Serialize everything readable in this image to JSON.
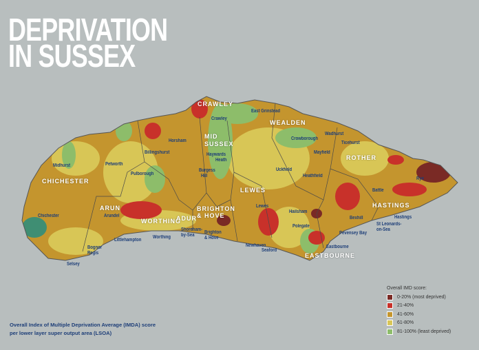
{
  "title": {
    "line1": "DEPRIVATION",
    "line2": "IN SUSSEX"
  },
  "caption": {
    "line1": "Overall Index of Multiple Deprivation Average (IMDA) score",
    "line2": "per lower layer super output area (LSOA)"
  },
  "legend": {
    "title": "Overall IMD score:",
    "items": [
      {
        "label": "0-20% (most deprived)",
        "color": "#7a2a25"
      },
      {
        "label": "21-40%",
        "color": "#c8312a"
      },
      {
        "label": "41-60%",
        "color": "#c4952e"
      },
      {
        "label": "61-80%",
        "color": "#d8c656"
      },
      {
        "label": "81-100% (least deprived)",
        "color": "#8dbd6a"
      }
    ]
  },
  "districts": {
    "crawley": "CRAWLEY",
    "mid1": "MID",
    "mid2": "SUSSEX",
    "chichester": "CHICHESTER",
    "arun": "ARUN",
    "worthing": "WORTHING",
    "adur": "ADUR",
    "brighton1": "BRIGHTON",
    "brighton2": "& HOVE",
    "wealden": "WEALDEN",
    "rother": "ROTHER",
    "lewes": "LEWES",
    "hastings": "HASTINGS",
    "eastbourne": "EASTBOURNE"
  },
  "towns": {
    "crawley": "Crawley",
    "horsham": "Horsham",
    "billingshurst": "Billingshurst",
    "haywards1": "Haywards",
    "haywards2": "Heath",
    "midhurst": "Midhurst",
    "petworth": "Petworth",
    "pulborough": "Pulborough",
    "burgess1": "Burgess",
    "burgess2": "Hill",
    "arundel": "Arundel",
    "chichester": "Chichester",
    "shoreham1": "Shoreham-",
    "shoreham2": "by-Sea",
    "brighton1": "Brighton",
    "brighton2": "& Hove",
    "littlehampton": "Littlehampton",
    "worthing": "Worthing",
    "bognor1": "Bognor",
    "bognor2": "Regis",
    "selsey": "Selsey",
    "eastgrinstead": "East Grinstead",
    "crowborough": "Crowborough",
    "wadhurst": "Wadhurst",
    "ticehurst": "Ticehurst",
    "mayfield": "Mayfield",
    "uckfield": "Uckfield",
    "heathfield": "Heathfield",
    "rye": "Rye",
    "battle": "Battle",
    "lewes": "Lewes",
    "hailsham": "Hailsham",
    "hastings": "Hastings",
    "bexhill": "Bexhill",
    "stleonards1": "St Leonards-",
    "stleonards2": "on-Sea",
    "polegate": "Polegate",
    "pevensey": "Pevensey Bay",
    "newhaven": "Newhaven",
    "seaford": "Seaford",
    "eastbourne": "Eastbourne"
  }
}
